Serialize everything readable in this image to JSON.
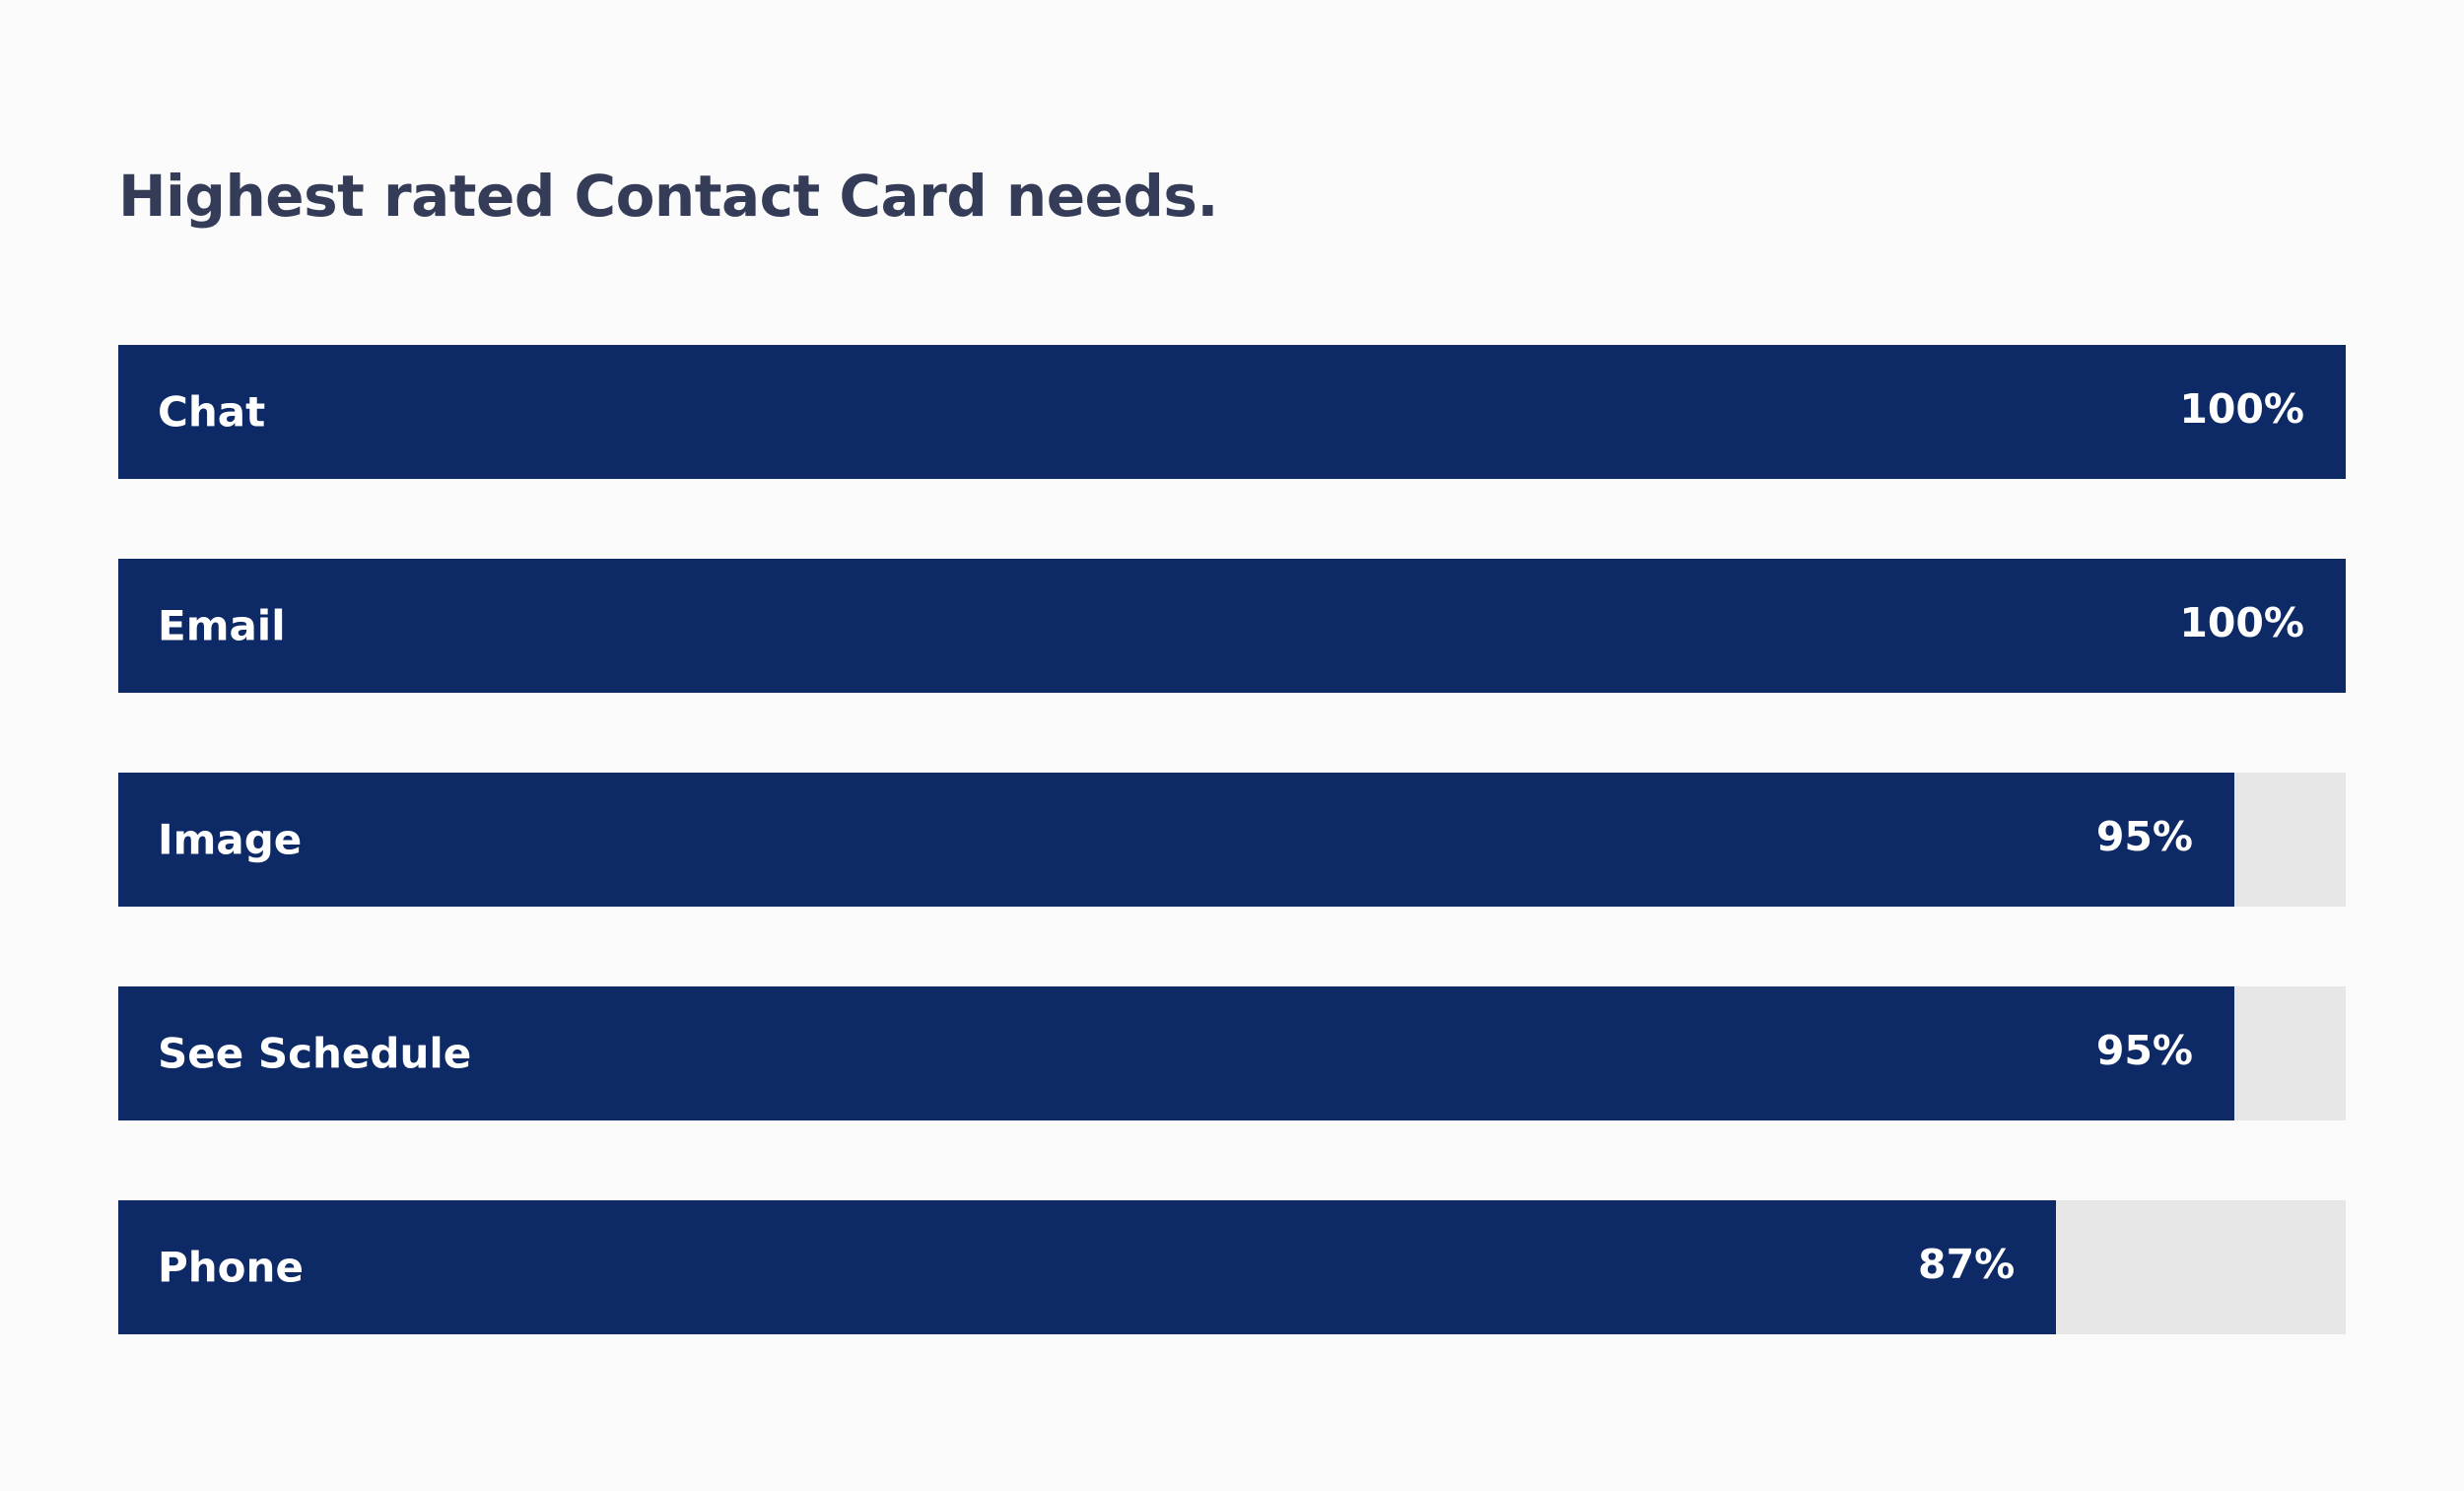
{
  "chart_data": {
    "type": "bar",
    "orientation": "horizontal",
    "title": "Highest rated Contact Card needs.",
    "categories": [
      "Chat",
      "Email",
      "Image",
      "See Schedule",
      "Phone"
    ],
    "values": [
      100,
      100,
      95,
      95,
      87
    ],
    "value_labels": [
      "100%",
      "100%",
      "95%",
      "95%",
      "87%"
    ],
    "xlim": [
      0,
      100
    ],
    "grid": false,
    "legend": "none",
    "colors": {
      "bar": "#0d2a66",
      "track": "#e7e7e8",
      "title": "#353c58",
      "label": "#ffffff",
      "background": "#fbfbfc"
    }
  }
}
